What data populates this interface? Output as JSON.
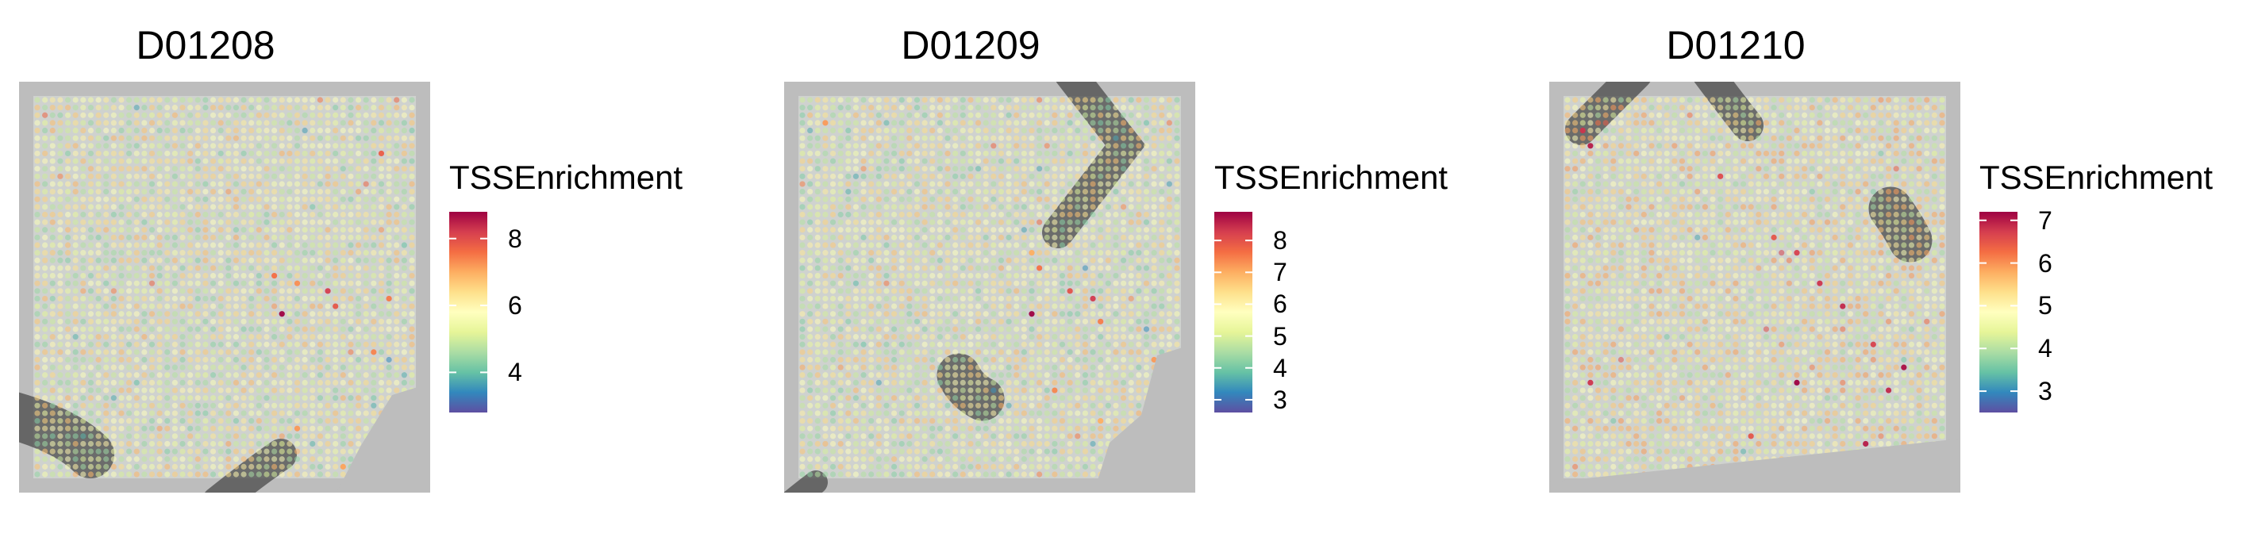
{
  "chart_data": [
    {
      "type": "scatter",
      "title": "D01208",
      "legend_title": "TSSEnrichment",
      "color_range": [
        2.8,
        8.8
      ],
      "ticks": [
        4,
        6,
        8
      ],
      "tick_labels": [
        "4",
        "6",
        "8"
      ],
      "colormap": [
        "#5E4FA2",
        "#3288BD",
        "#66C2A5",
        "#ABDDA4",
        "#E6F598",
        "#FFFFBF",
        "#FEE08B",
        "#FDAE61",
        "#F46D43",
        "#D53E4F",
        "#9E0142"
      ],
      "grid_size": 50,
      "base_value": 5.6,
      "hotspots": [
        {
          "col": 45,
          "row": 7,
          "value": 7.8
        },
        {
          "col": 31,
          "row": 23,
          "value": 7.6
        },
        {
          "col": 34,
          "row": 24,
          "value": 7.3
        },
        {
          "col": 38,
          "row": 25,
          "value": 8.2
        },
        {
          "col": 32,
          "row": 28,
          "value": 8.8
        },
        {
          "col": 39,
          "row": 27,
          "value": 7.9
        },
        {
          "col": 46,
          "row": 26,
          "value": 7.5
        },
        {
          "col": 44,
          "row": 33,
          "value": 7.4
        },
        {
          "col": 34,
          "row": 43,
          "value": 7.2
        },
        {
          "col": 40,
          "row": 48,
          "value": 7.1
        }
      ]
    },
    {
      "type": "scatter",
      "title": "D01209",
      "legend_title": "TSSEnrichment",
      "color_range": [
        2.6,
        8.9
      ],
      "ticks": [
        3,
        4,
        5,
        6,
        7,
        8
      ],
      "tick_labels": [
        "3",
        "4",
        "5",
        "6",
        "7",
        "8"
      ],
      "colormap": [
        "#5E4FA2",
        "#3288BD",
        "#66C2A5",
        "#ABDDA4",
        "#E6F598",
        "#FFFFBF",
        "#FEE08B",
        "#FDAE61",
        "#F46D43",
        "#D53E4F",
        "#9E0142"
      ],
      "grid_size": 50,
      "base_value": 5.5,
      "hotspots": [
        {
          "col": 3,
          "row": 3,
          "value": 7.2
        },
        {
          "col": 30,
          "row": 20,
          "value": 7.0
        },
        {
          "col": 31,
          "row": 22,
          "value": 7.6
        },
        {
          "col": 35,
          "row": 25,
          "value": 8.0
        },
        {
          "col": 38,
          "row": 26,
          "value": 8.3
        },
        {
          "col": 30,
          "row": 28,
          "value": 8.9
        },
        {
          "col": 39,
          "row": 29,
          "value": 7.5
        },
        {
          "col": 46,
          "row": 34,
          "value": 7.2
        },
        {
          "col": 33,
          "row": 38,
          "value": 7.4
        },
        {
          "col": 39,
          "row": 42,
          "value": 7.0
        }
      ]
    },
    {
      "type": "scatter",
      "title": "D01210",
      "legend_title": "TSSEnrichment",
      "color_range": [
        2.5,
        7.2
      ],
      "ticks": [
        3,
        4,
        5,
        6,
        7
      ],
      "tick_labels": [
        "3",
        "4",
        "5",
        "6",
        "7"
      ],
      "colormap": [
        "#5E4FA2",
        "#3288BD",
        "#66C2A5",
        "#ABDDA4",
        "#E6F598",
        "#FFFFBF",
        "#FEE08B",
        "#FDAE61",
        "#F46D43",
        "#D53E4F",
        "#9E0142"
      ],
      "grid_size": 50,
      "base_value": 4.9,
      "hotspots": [
        {
          "col": 2,
          "row": 4,
          "value": 6.8
        },
        {
          "col": 3,
          "row": 6,
          "value": 7.0
        },
        {
          "col": 20,
          "row": 10,
          "value": 6.6
        },
        {
          "col": 27,
          "row": 18,
          "value": 6.5
        },
        {
          "col": 30,
          "row": 20,
          "value": 6.7
        },
        {
          "col": 33,
          "row": 24,
          "value": 6.8
        },
        {
          "col": 36,
          "row": 27,
          "value": 6.9
        },
        {
          "col": 40,
          "row": 32,
          "value": 6.7
        },
        {
          "col": 44,
          "row": 35,
          "value": 7.1
        },
        {
          "col": 42,
          "row": 38,
          "value": 6.9
        },
        {
          "col": 30,
          "row": 37,
          "value": 7.2
        },
        {
          "col": 3,
          "row": 37,
          "value": 6.8
        },
        {
          "col": 39,
          "row": 45,
          "value": 7.0
        },
        {
          "col": 24,
          "row": 44,
          "value": 6.5
        }
      ]
    }
  ]
}
